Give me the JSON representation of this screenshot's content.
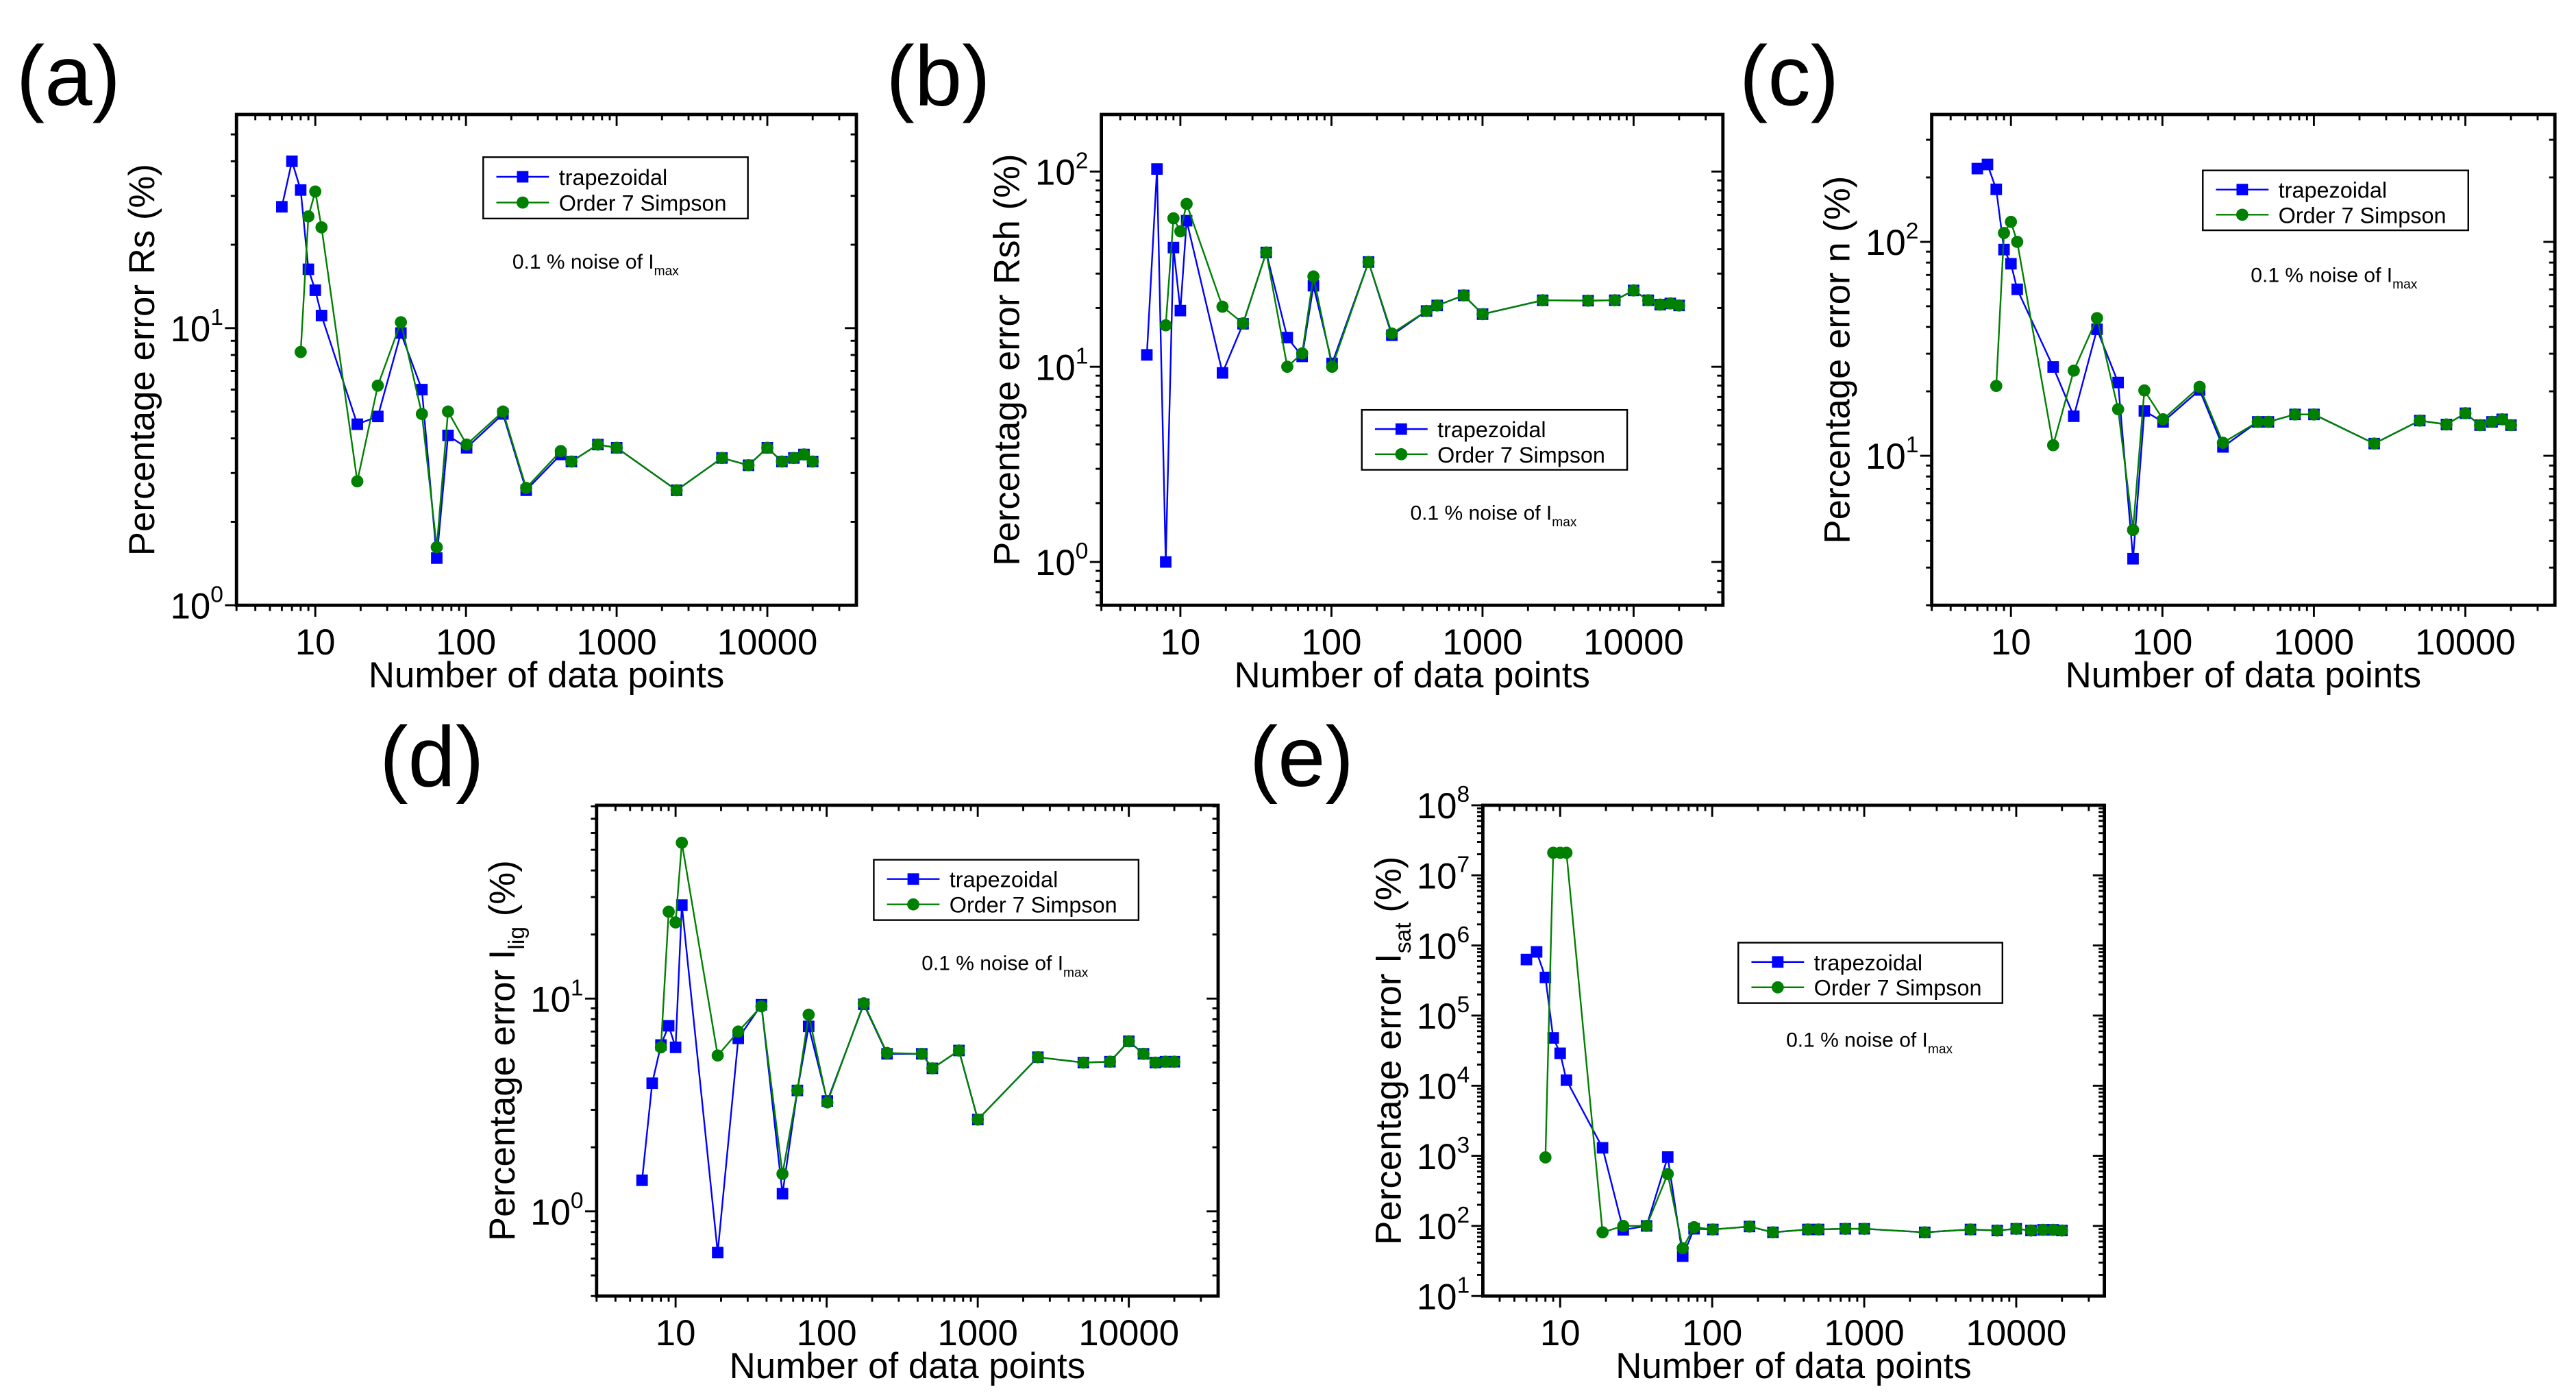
{
  "colors": {
    "trapezoidal": "#0000ff",
    "simpson": "#008000",
    "axis": "#000000"
  },
  "chart_data": [
    {
      "panel_label": "(a)",
      "type": "line",
      "xscale": "log",
      "yscale": "log",
      "xlabel": "Number of data points",
      "ylabel": {
        "main": "Percentage error Rs",
        "sub": "",
        "tail": " (%)"
      },
      "xlim": [
        3,
        39000
      ],
      "ylim": [
        1,
        59
      ],
      "xticks": [
        {
          "v": 10,
          "label": "10"
        },
        {
          "v": 100,
          "label": "100"
        },
        {
          "v": 1000,
          "label": "1000"
        },
        {
          "v": 10000,
          "label": "10000"
        }
      ],
      "yticks": [
        {
          "v": 1,
          "base": "10",
          "exp": "0"
        },
        {
          "v": 10,
          "base": "10",
          "exp": "1"
        }
      ],
      "annotation": {
        "text": "0.1 % noise of I",
        "sub": "max"
      },
      "legend_position": "top-right",
      "x": [
        6,
        7,
        8,
        9,
        10,
        11,
        19,
        26,
        37,
        51,
        64,
        76,
        101,
        176,
        251,
        426,
        501,
        751,
        1001,
        2501,
        5001,
        7501,
        10001,
        12501,
        15001,
        17501,
        20001
      ],
      "series": [
        {
          "name": "trapezoidal",
          "marker": "square",
          "values": [
            27.4,
            40,
            31.5,
            16.3,
            13.7,
            11.1,
            4.5,
            4.8,
            9.6,
            6.0,
            1.48,
            4.1,
            3.7,
            4.9,
            2.6,
            3.5,
            3.3,
            3.8,
            3.7,
            2.6,
            3.4,
            3.2,
            3.7,
            3.3,
            3.4,
            3.5,
            3.3
          ]
        },
        {
          "name": "Order 7 Simpson",
          "marker": "circle",
          "values": [
            null,
            null,
            8.2,
            25.3,
            31.1,
            23.1,
            2.8,
            6.2,
            10.5,
            4.9,
            1.62,
            5.0,
            3.8,
            5.0,
            2.65,
            3.6,
            3.3,
            3.8,
            3.7,
            2.6,
            3.4,
            3.2,
            3.7,
            3.3,
            3.4,
            3.5,
            3.3
          ]
        }
      ]
    },
    {
      "panel_label": "(b)",
      "type": "line",
      "xscale": "log",
      "yscale": "log",
      "xlabel": "Number of data points",
      "ylabel": {
        "main": "Percentage error Rsh",
        "sub": "",
        "tail": " (%)"
      },
      "xlim": [
        3,
        39000
      ],
      "ylim": [
        0.6,
        196
      ],
      "xticks": [
        {
          "v": 10,
          "label": "10"
        },
        {
          "v": 100,
          "label": "100"
        },
        {
          "v": 1000,
          "label": "1000"
        },
        {
          "v": 10000,
          "label": "10000"
        }
      ],
      "yticks": [
        {
          "v": 1,
          "base": "10",
          "exp": "0"
        },
        {
          "v": 10,
          "base": "10",
          "exp": "1"
        },
        {
          "v": 100,
          "base": "10",
          "exp": "2"
        }
      ],
      "annotation": {
        "text": "0.1 % noise of I",
        "sub": "max"
      },
      "legend_position": "center-right",
      "x": [
        6,
        7,
        8,
        9,
        10,
        11,
        19,
        26,
        37,
        51,
        64,
        76,
        101,
        176,
        251,
        426,
        501,
        751,
        1001,
        2501,
        5001,
        7501,
        10001,
        12501,
        15001,
        17501,
        20001
      ],
      "series": [
        {
          "name": "trapezoidal",
          "marker": "square",
          "values": [
            11.5,
            103,
            1.0,
            40.8,
            19.4,
            56,
            9.3,
            16.6,
            38.5,
            14.1,
            11.3,
            26,
            10.4,
            34.4,
            14.5,
            19.3,
            20.6,
            23.2,
            18.6,
            21.9,
            21.8,
            21.9,
            24.6,
            21.9,
            20.8,
            21.1,
            20.6
          ]
        },
        {
          "name": "Order 7 Simpson",
          "marker": "circle",
          "values": [
            null,
            null,
            16.3,
            57.6,
            49.4,
            68.3,
            20.3,
            16.7,
            38.5,
            10.0,
            11.7,
            29,
            10.0,
            34.4,
            14.8,
            19.3,
            20.6,
            23.2,
            18.6,
            21.9,
            21.8,
            21.9,
            24.6,
            21.9,
            20.8,
            21.1,
            20.6
          ]
        }
      ]
    },
    {
      "panel_label": "(c)",
      "type": "line",
      "xscale": "log",
      "yscale": "log",
      "xlabel": "Number of data points",
      "ylabel": {
        "main": "Percentage error n",
        "sub": "",
        "tail": " (%)"
      },
      "xlim": [
        3,
        39000
      ],
      "ylim": [
        2,
        394
      ],
      "xticks": [
        {
          "v": 10,
          "label": "10"
        },
        {
          "v": 100,
          "label": "100"
        },
        {
          "v": 1000,
          "label": "1000"
        },
        {
          "v": 10000,
          "label": "10000"
        }
      ],
      "yticks": [
        {
          "v": 10,
          "base": "10",
          "exp": "1"
        },
        {
          "v": 100,
          "base": "10",
          "exp": "2"
        }
      ],
      "annotation": {
        "text": "0.1 % noise of I",
        "sub": "max"
      },
      "legend_position": "top-right",
      "x": [
        6,
        7,
        8,
        9,
        10,
        11,
        19,
        26,
        37,
        51,
        64,
        76,
        101,
        176,
        251,
        426,
        501,
        751,
        1001,
        2501,
        5001,
        7501,
        10001,
        12501,
        15001,
        17501,
        20001
      ],
      "series": [
        {
          "name": "trapezoidal",
          "marker": "square",
          "values": [
            220,
            230,
            176,
            92,
            79,
            60,
            26,
            15.3,
            39,
            22,
            3.3,
            16.2,
            14.4,
            20.3,
            11.0,
            14.4,
            14.4,
            15.6,
            15.6,
            11.4,
            14.6,
            14.0,
            15.8,
            13.9,
            14.4,
            14.8,
            13.9
          ]
        },
        {
          "name": "Order 7 Simpson",
          "marker": "circle",
          "values": [
            null,
            null,
            21.2,
            110,
            124,
            100,
            11.2,
            25,
            44,
            16.5,
            4.5,
            20.2,
            14.8,
            21,
            11.5,
            14.4,
            14.4,
            15.6,
            15.6,
            11.4,
            14.6,
            14.0,
            15.8,
            13.9,
            14.4,
            14.8,
            13.9
          ]
        }
      ]
    },
    {
      "panel_label": "(d)",
      "type": "line",
      "xscale": "log",
      "yscale": "log",
      "xlabel": "Number of data points",
      "ylabel": {
        "main": "Percentage error I",
        "sub": "lig",
        "tail": " (%)"
      },
      "xlim": [
        3,
        39000
      ],
      "ylim": [
        0.4,
        81
      ],
      "xticks": [
        {
          "v": 10,
          "label": "10"
        },
        {
          "v": 100,
          "label": "100"
        },
        {
          "v": 1000,
          "label": "1000"
        },
        {
          "v": 10000,
          "label": "10000"
        }
      ],
      "yticks": [
        {
          "v": 1,
          "base": "10",
          "exp": "0"
        },
        {
          "v": 10,
          "base": "10",
          "exp": "1"
        }
      ],
      "annotation": {
        "text": "0.1 % noise of I",
        "sub": "max"
      },
      "legend_position": "top-right",
      "x": [
        6,
        7,
        8,
        9,
        10,
        11,
        19,
        26,
        37,
        51,
        64,
        76,
        101,
        176,
        251,
        426,
        501,
        751,
        1001,
        2501,
        5001,
        7501,
        10001,
        12501,
        15001,
        17501,
        20001
      ],
      "series": [
        {
          "name": "trapezoidal",
          "marker": "square",
          "values": [
            1.4,
            4.0,
            6.05,
            7.45,
            5.9,
            27.5,
            0.64,
            6.5,
            9.35,
            1.21,
            3.7,
            7.4,
            3.3,
            9.4,
            5.5,
            5.5,
            4.7,
            5.7,
            2.7,
            5.3,
            5.0,
            5.05,
            6.3,
            5.5,
            5.0,
            5.05,
            5.05
          ]
        },
        {
          "name": "Order 7 Simpson",
          "marker": "circle",
          "values": [
            null,
            null,
            5.9,
            25.6,
            22.8,
            54,
            5.4,
            7.0,
            9.2,
            1.5,
            3.7,
            8.4,
            3.25,
            9.5,
            5.55,
            5.5,
            4.7,
            5.7,
            2.7,
            5.3,
            5.0,
            5.05,
            6.3,
            5.5,
            5.0,
            5.05,
            5.05
          ]
        }
      ]
    },
    {
      "panel_label": "(e)",
      "type": "line",
      "xscale": "log",
      "yscale": "log",
      "xlabel": "Number of data points",
      "ylabel": {
        "main": "Percentage error I",
        "sub": "sat",
        "tail": " (%)"
      },
      "xlim": [
        3.1,
        38000
      ],
      "ylim": [
        10,
        100000000
      ],
      "xticks": [
        {
          "v": 10,
          "label": "10"
        },
        {
          "v": 100,
          "label": "100"
        },
        {
          "v": 1000,
          "label": "1000"
        },
        {
          "v": 10000,
          "label": "10000"
        }
      ],
      "yticks": [
        {
          "v": 10,
          "base": "10",
          "exp": "1"
        },
        {
          "v": 100,
          "base": "10",
          "exp": "2"
        },
        {
          "v": 1000,
          "base": "10",
          "exp": "3"
        },
        {
          "v": 10000,
          "base": "10",
          "exp": "4"
        },
        {
          "v": 100000,
          "base": "10",
          "exp": "5"
        },
        {
          "v": 1000000,
          "base": "10",
          "exp": "6"
        },
        {
          "v": 10000000,
          "base": "10",
          "exp": "7"
        },
        {
          "v": 100000000,
          "base": "10",
          "exp": "8"
        }
      ],
      "annotation": {
        "text": "0.1 % noise of I",
        "sub": "max"
      },
      "legend_position": "upper-right",
      "x": [
        6,
        7,
        8,
        9,
        10,
        11,
        19,
        26,
        37,
        51,
        64,
        76,
        101,
        176,
        251,
        426,
        501,
        751,
        1001,
        2501,
        5001,
        7501,
        10001,
        12501,
        15001,
        17501,
        20001
      ],
      "series": [
        {
          "name": "trapezoidal",
          "marker": "square",
          "values": [
            630000,
            810000,
            350000,
            48000,
            29000,
            12000,
            1300,
            88,
            100,
            960,
            37,
            91,
            89,
            98,
            81,
            89,
            89,
            91,
            91,
            81,
            89,
            86,
            91,
            86,
            88,
            88,
            86
          ]
        },
        {
          "name": "Order 7 Simpson",
          "marker": "circle",
          "values": [
            null,
            null,
            950,
            21000000,
            21000000,
            21000000,
            81,
            100,
            100,
            550,
            48,
            96,
            89,
            98,
            81,
            89,
            89,
            91,
            91,
            81,
            89,
            86,
            91,
            86,
            88,
            88,
            86
          ]
        }
      ]
    }
  ]
}
